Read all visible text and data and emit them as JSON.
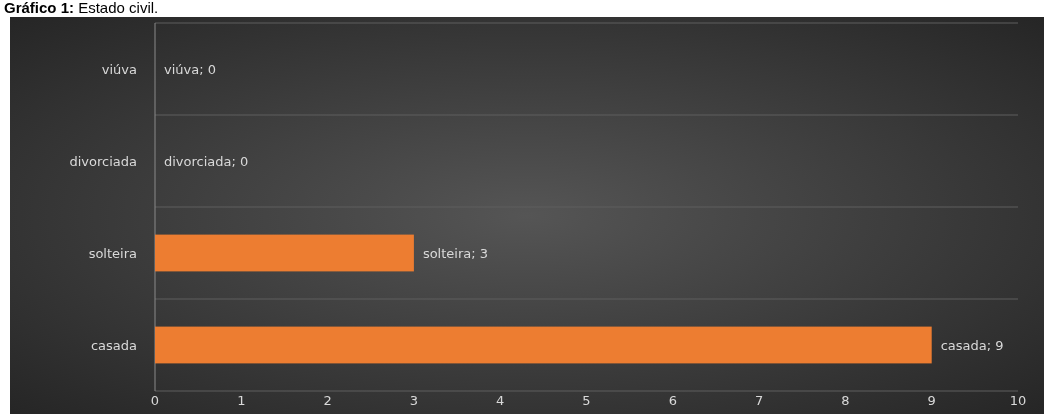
{
  "chart_data": {
    "type": "bar",
    "orientation": "horizontal",
    "title": "Gráfico 1: Estado civil.",
    "categories": [
      "viúva",
      "divorciada",
      "solteira",
      "casada"
    ],
    "values": [
      0,
      0,
      3,
      9
    ],
    "value_labels": [
      "viúva; 0",
      "divorciada; 0",
      "solteira; 3",
      "casada; 9"
    ],
    "color": "#ed7d31",
    "xlim": [
      0,
      10
    ],
    "xticks": [
      0,
      1,
      2,
      3,
      4,
      5,
      6,
      7,
      8,
      9,
      10
    ],
    "grid": "y"
  }
}
